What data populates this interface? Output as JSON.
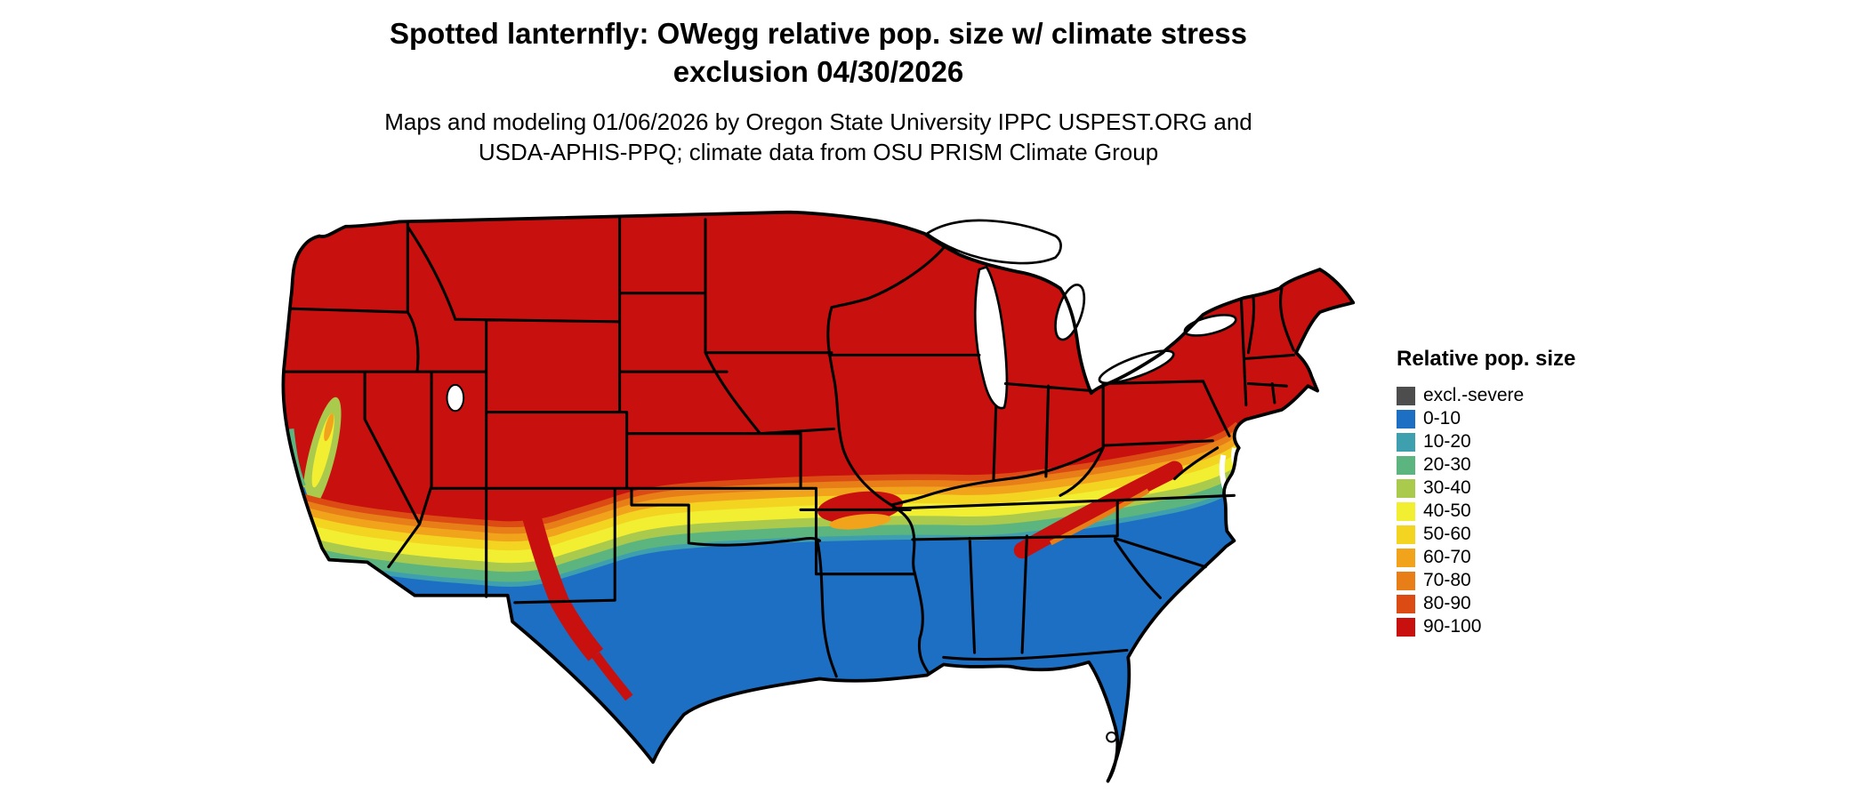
{
  "title": {
    "line1": "Spotted lanternfly: OWegg relative pop. size w/ climate stress",
    "line2": "exclusion 04/30/2026"
  },
  "subtitle": {
    "line1": "Maps and modeling 01/06/2026 by Oregon State University IPPC USPEST.ORG and",
    "line2": "USDA-APHIS-PPQ; climate data from OSU PRISM Climate Group"
  },
  "legend": {
    "title": "Relative pop. size",
    "entries": [
      {
        "label": "excl.-severe",
        "color": "#4d4d4d"
      },
      {
        "label": "0-10",
        "color": "#1d6fc4"
      },
      {
        "label": "10-20",
        "color": "#3e9fae"
      },
      {
        "label": "20-30",
        "color": "#5cb57e"
      },
      {
        "label": "30-40",
        "color": "#a9ca4c"
      },
      {
        "label": "40-50",
        "color": "#f2ef33"
      },
      {
        "label": "50-60",
        "color": "#f3d420"
      },
      {
        "label": "60-70",
        "color": "#f2a31c"
      },
      {
        "label": "70-80",
        "color": "#e77e17"
      },
      {
        "label": "80-90",
        "color": "#dc4b13"
      },
      {
        "label": "90-100",
        "color": "#c8100e"
      }
    ]
  },
  "map": {
    "region": "Contiguous United States",
    "kind": "raster choropleth of relative population size"
  }
}
